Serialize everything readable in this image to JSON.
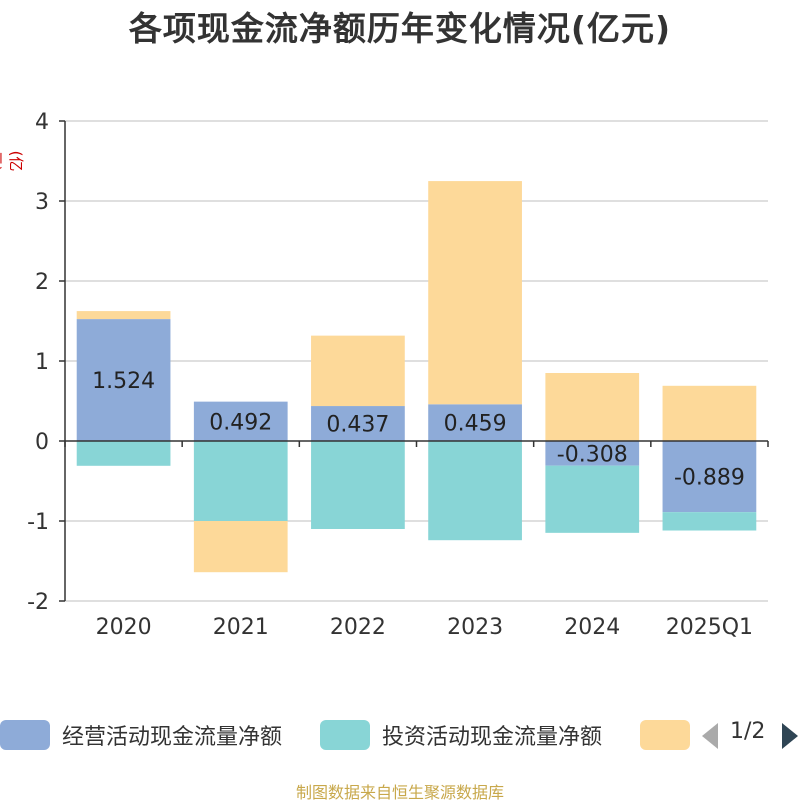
{
  "chart_data": {
    "type": "bar",
    "stacked": true,
    "title": "各项现金流净额历年变化情况(亿元)",
    "ylabel": "(亿元)",
    "ylim": [
      -2,
      4
    ],
    "yticks": [
      4,
      3,
      2,
      1,
      0,
      -1,
      -2
    ],
    "grid": true,
    "legend_position": "bottom",
    "categories": [
      "2020",
      "2021",
      "2022",
      "2023",
      "2024",
      "2025Q1"
    ],
    "series": [
      {
        "name": "经营活动现金流量净额",
        "color": "#8eabd8",
        "values": [
          1.524,
          0.492,
          0.437,
          0.459,
          -0.308,
          -0.889
        ],
        "labels": [
          "1.524",
          "0.492",
          "0.437",
          "0.459",
          "-0.308",
          "-0.889"
        ]
      },
      {
        "name": "投资活动现金流量净额",
        "color": "#88d5d6",
        "values": [
          -0.31,
          -1.0,
          -1.1,
          -1.24,
          -0.84,
          -0.23
        ]
      },
      {
        "name": "",
        "color": "#fdd999",
        "values": [
          0.1,
          -0.64,
          0.88,
          2.79,
          0.85,
          0.69
        ]
      }
    ]
  },
  "legend": {
    "pager_text": "1/2"
  },
  "source_note": "制图数据来自恒生聚源数据库"
}
